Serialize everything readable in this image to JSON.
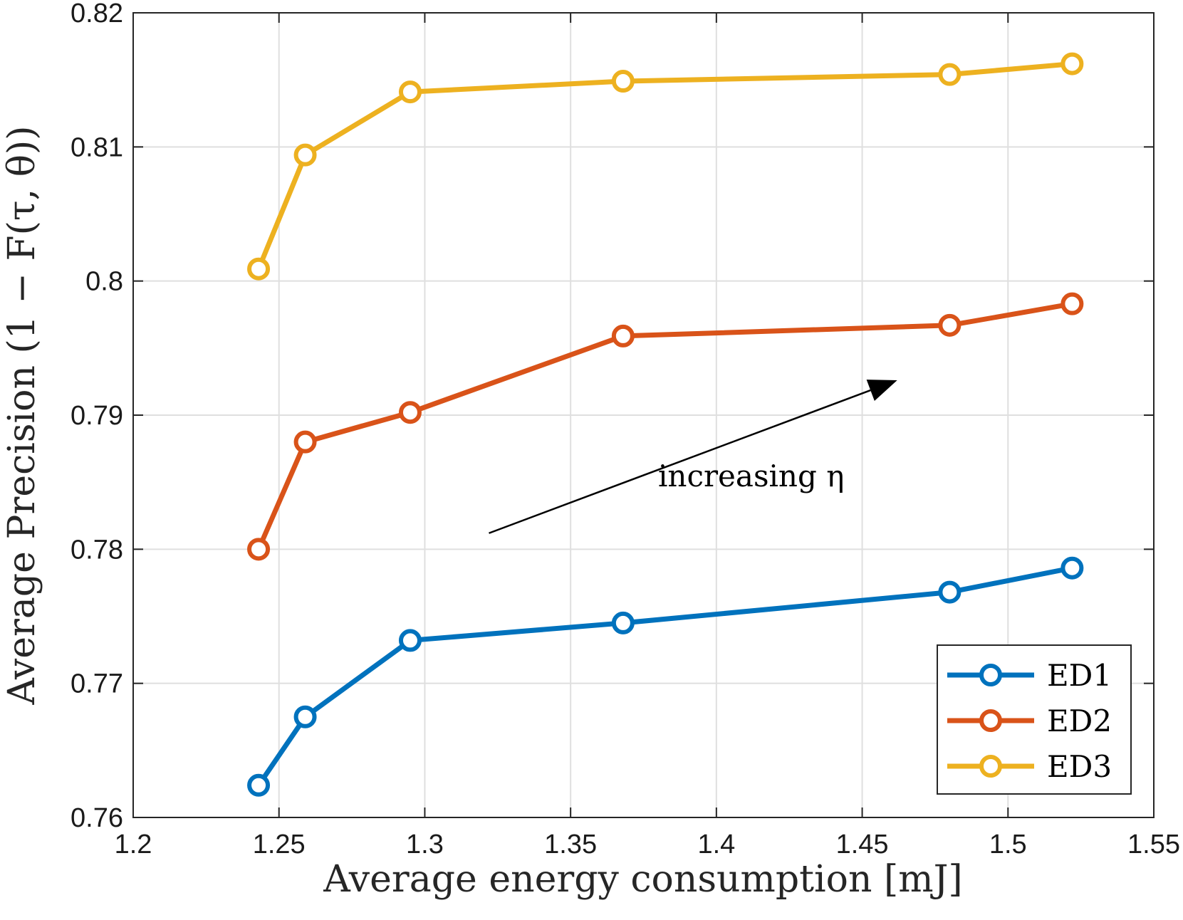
{
  "chart_data": {
    "type": "line",
    "title": "",
    "xlabel": "Average energy consumption [mJ]",
    "ylabel": "Average Precision (1 − F(τ, θ))",
    "xlim": [
      1.2,
      1.55
    ],
    "ylim": [
      0.76,
      0.82
    ],
    "xticks": [
      1.2,
      1.25,
      1.3,
      1.35,
      1.4,
      1.45,
      1.5,
      1.55
    ],
    "xtick_labels": [
      "1.2",
      "1.25",
      "1.3",
      "1.35",
      "1.4",
      "1.45",
      "1.5",
      "1.55"
    ],
    "yticks": [
      0.76,
      0.77,
      0.78,
      0.79,
      0.8,
      0.81,
      0.82
    ],
    "ytick_labels": [
      "0.76",
      "0.77",
      "0.78",
      "0.79",
      "0.8",
      "0.81",
      "0.82"
    ],
    "grid": true,
    "legend_position": "bottom-right",
    "x": [
      1.243,
      1.259,
      1.295,
      1.368,
      1.48,
      1.522
    ],
    "series": [
      {
        "name": "ED1",
        "color": "#0072bd",
        "values": [
          0.7624,
          0.7675,
          0.7732,
          0.7745,
          0.7768,
          0.7786
        ]
      },
      {
        "name": "ED2",
        "color": "#d95319",
        "values": [
          0.78,
          0.788,
          0.7902,
          0.7959,
          0.7967,
          0.7983
        ]
      },
      {
        "name": "ED3",
        "color": "#edb120",
        "values": [
          0.8009,
          0.8094,
          0.8141,
          0.8149,
          0.8154,
          0.8162
        ]
      }
    ],
    "annotation": {
      "text": "increasing η",
      "arrow_from": [
        1.322,
        0.7812
      ],
      "arrow_to": [
        1.462,
        0.7926
      ],
      "text_at": [
        1.38,
        0.7847
      ]
    }
  }
}
